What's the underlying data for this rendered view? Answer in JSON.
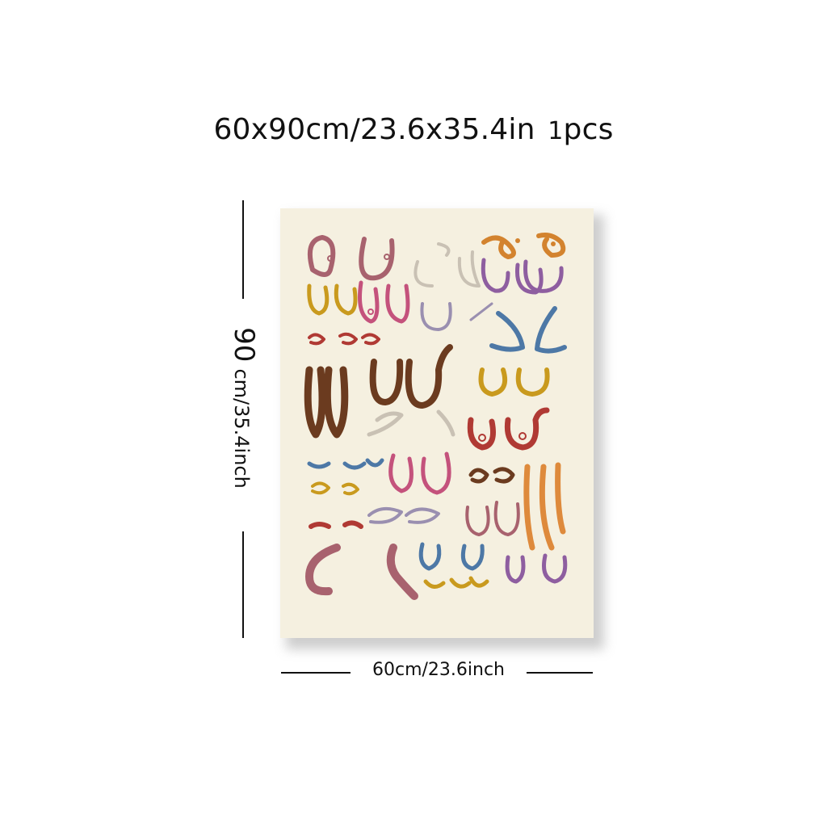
{
  "product": {
    "size_title": "60x90cm/23.6x35.4in",
    "quantity_number": "1",
    "quantity_unit": "pcs",
    "height_number": "90",
    "height_unit": "cm/35.4inch",
    "width_label": "60cm/23.6inch"
  },
  "artwork": {
    "background": "#f5f0e0",
    "palette": [
      "#a8626e",
      "#c9b98a",
      "#d3832e",
      "#8e5ea0",
      "#c99a1e",
      "#c4527c",
      "#b03a34",
      "#4d78a6",
      "#6b3b1f",
      "#9a8fb0",
      "#de8a3c",
      "#c9c1b4"
    ],
    "motif": "line-drawing-pattern"
  }
}
